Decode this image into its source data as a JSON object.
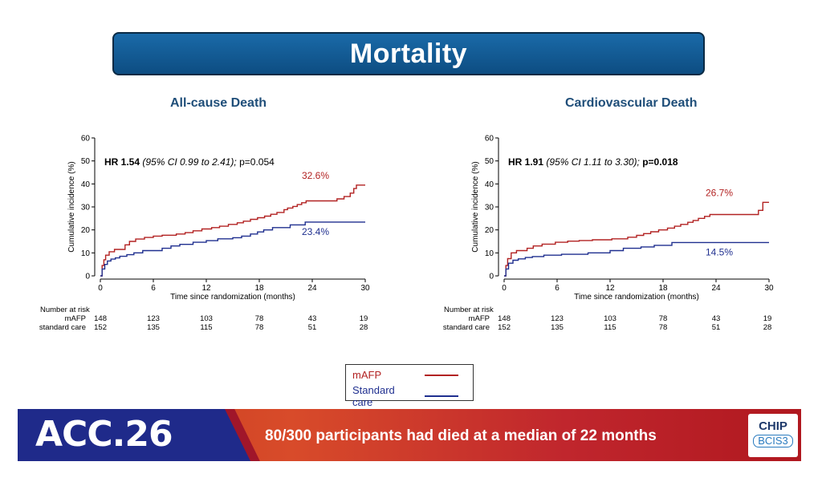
{
  "title": "Mortality",
  "legend": {
    "items": [
      {
        "label": "mAFP",
        "color": "#b22222"
      },
      {
        "label": "Standard care",
        "color": "#1f2f8f"
      }
    ]
  },
  "banner": {
    "conference": "ACC.26",
    "message": "80/300 participants had died at a median of 22 months",
    "logo_top": "CHIP",
    "logo_bottom": "BCIS3"
  },
  "chart_data": [
    {
      "type": "line",
      "title": "All-cause Death",
      "xlabel": "Time since randomization (months)",
      "ylabel": "Cumulative incidence (%)",
      "xlim": [
        0,
        30
      ],
      "ylim": [
        0,
        60
      ],
      "xticks": [
        0,
        6,
        12,
        18,
        24,
        30
      ],
      "yticks": [
        0,
        10,
        20,
        30,
        40,
        50,
        60
      ],
      "annotation": {
        "hr_bold": "HR 1.54",
        "ci": "(95% CI 0.99 to 2.41);",
        "p": "p=0.054",
        "p_bold": false
      },
      "series": [
        {
          "name": "mAFP",
          "color": "#b22222",
          "end_label": "32.6%",
          "x": [
            0,
            0.2,
            0.4,
            0.6,
            1,
            1.6,
            2.8,
            3.3,
            4,
            5,
            6,
            7,
            8.6,
            9.6,
            10.5,
            11.5,
            12.6,
            13.5,
            14.5,
            15.5,
            16.2,
            17,
            17.8,
            18.6,
            19.3,
            20,
            20.8,
            21.2,
            21.8,
            22.3,
            22.8,
            23.3,
            26,
            26.8,
            27.6,
            28.3,
            28.7,
            29,
            30
          ],
          "y": [
            0,
            4.5,
            7,
            9,
            10.5,
            11.5,
            13.5,
            15,
            16,
            16.7,
            17.3,
            17.7,
            18.2,
            18.8,
            19.6,
            20.4,
            21,
            21.6,
            22.4,
            23.1,
            23.8,
            24.6,
            25.3,
            26,
            26.8,
            27.6,
            28.8,
            29.5,
            30.2,
            31,
            31.8,
            32.6,
            32.6,
            33.5,
            34.5,
            36,
            38,
            39.5,
            39.5
          ]
        },
        {
          "name": "Standard care",
          "color": "#1f2f8f",
          "end_label": "23.4%",
          "x": [
            0,
            0.2,
            0.5,
            0.8,
            1.2,
            1.7,
            2.2,
            3,
            3.8,
            4.8,
            7,
            8,
            9,
            10.5,
            12,
            13.3,
            15,
            16,
            17,
            17.8,
            18.5,
            19.5,
            21.5,
            23.2,
            30
          ],
          "y": [
            0,
            3,
            5,
            6.5,
            7.3,
            7.8,
            8.5,
            9.2,
            10,
            11,
            12,
            13,
            13.7,
            14.6,
            15.3,
            16.1,
            16.6,
            17.3,
            18.2,
            19.1,
            20,
            21,
            22.2,
            23.4,
            23.4
          ]
        }
      ],
      "risk_table": {
        "heading": "Number at risk",
        "rows": [
          {
            "label": "mAFP",
            "values": [
              "148",
              "123",
              "103",
              "78",
              "43",
              "19"
            ]
          },
          {
            "label": "standard care",
            "values": [
              "152",
              "135",
              "115",
              "78",
              "51",
              "28"
            ]
          }
        ]
      }
    },
    {
      "type": "line",
      "title": "Cardiovascular Death",
      "xlabel": "Time since randomization (months)",
      "ylabel": "Cumulative incidence (%)",
      "xlim": [
        0,
        30
      ],
      "ylim": [
        0,
        60
      ],
      "xticks": [
        0,
        6,
        12,
        18,
        24,
        30
      ],
      "yticks": [
        0,
        10,
        20,
        30,
        40,
        50,
        60
      ],
      "annotation": {
        "hr_bold": "HR 1.91",
        "ci": "(95% CI 1.11 to 3.30);",
        "p": "p=0.018",
        "p_bold": true
      },
      "series": [
        {
          "name": "mAFP",
          "color": "#b22222",
          "end_label": "26.7%",
          "x": [
            0,
            0.2,
            0.4,
            0.8,
            1.4,
            2.6,
            3.3,
            4.3,
            5.8,
            7.2,
            8.5,
            10,
            12.2,
            14,
            15,
            15.8,
            16.6,
            17.5,
            18.5,
            19.3,
            20,
            20.8,
            21.4,
            22,
            22.7,
            23.3,
            28.3,
            28.8,
            29.3,
            30
          ],
          "y": [
            0,
            4.5,
            7.5,
            10,
            11,
            12,
            13,
            13.8,
            14.6,
            15.1,
            15.4,
            15.7,
            16.1,
            16.8,
            17.6,
            18.4,
            19.2,
            20,
            20.8,
            21.6,
            22.4,
            23.3,
            24.1,
            25,
            25.9,
            26.7,
            26.7,
            28.5,
            32,
            32
          ]
        },
        {
          "name": "Standard care",
          "color": "#1f2f8f",
          "end_label": "14.5%",
          "x": [
            0,
            0.2,
            0.5,
            1,
            1.6,
            2.4,
            3.2,
            4.5,
            6.5,
            9.5,
            12,
            13.5,
            15.5,
            17,
            19,
            30
          ],
          "y": [
            0,
            3,
            5.5,
            6.8,
            7.4,
            8,
            8.4,
            9,
            9.4,
            10,
            11,
            12,
            12.6,
            13.3,
            14.5,
            14.5
          ]
        }
      ],
      "risk_table": {
        "heading": "Number at risk",
        "rows": [
          {
            "label": "mAFP",
            "values": [
              "148",
              "123",
              "103",
              "78",
              "43",
              "19"
            ]
          },
          {
            "label": "standard care",
            "values": [
              "152",
              "135",
              "115",
              "78",
              "51",
              "28"
            ]
          }
        ]
      }
    }
  ]
}
